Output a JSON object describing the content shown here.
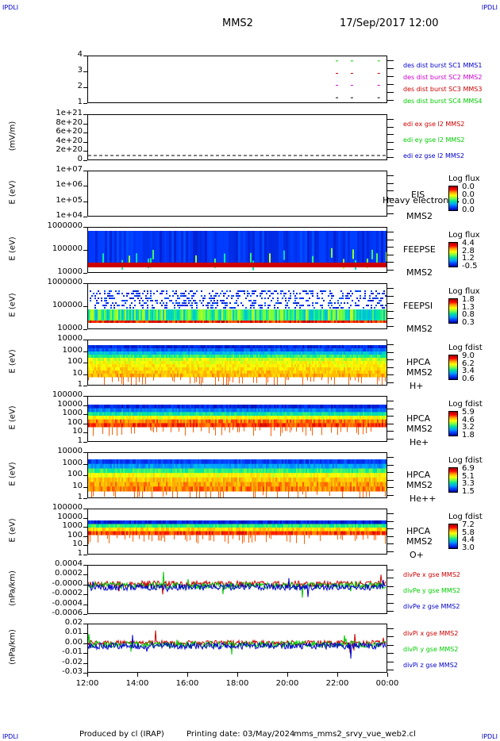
{
  "corners": {
    "tl": "IPDLI",
    "tr": "IPDLI",
    "bl": "IPDLI",
    "br": "IPDLI"
  },
  "header": {
    "title": "MMS2",
    "date": "17/Sep/2017 12:00"
  },
  "footer": {
    "produced": "Produced by cl (IRAP)",
    "printing": "Printing date: 03/May/2024",
    "file": "mms_mms2_srvy_vue_web2.cl"
  },
  "chart_data": [
    {
      "type": "scatter",
      "ylabel": "",
      "yticks": [
        "4",
        "3",
        "2",
        "1"
      ],
      "legend": [
        {
          "name": "des dist burst SC1 MMS1",
          "color": "#0000cc"
        },
        {
          "name": "des dist burst SC2 MMS2",
          "color": "#cc00cc"
        },
        {
          "name": "des dist burst SC3 MMS3",
          "color": "#cc0000"
        },
        {
          "name": "des dist burst SC4 MMS4",
          "color": "#00cc00"
        }
      ]
    },
    {
      "type": "line",
      "ylabel": "(mV/m)",
      "yticks": [
        "1e+21",
        "8e+20",
        "6e+20",
        "4e+20",
        "2e+20",
        "0"
      ],
      "legend": [
        {
          "name": "edi ex gse l2 MMS2",
          "color": "#cc0000"
        },
        {
          "name": "edi ey gse l2 MMS2",
          "color": "#00cc00"
        },
        {
          "name": "edi ez gse l2 MMS2",
          "color": "#0000cc"
        }
      ]
    },
    {
      "type": "heatmap",
      "ylabel": "E (eV)",
      "yticks": [
        "1e+07",
        "1e+06",
        "1e+05",
        "1e+04"
      ],
      "instrument": "EIS",
      "note": "Heavy electron ts",
      "sc": "MMS2",
      "cbar_title": "Log flux",
      "cbar_values": [
        "0.0",
        "0.0",
        "0.0",
        "0.0"
      ]
    },
    {
      "type": "heatmap",
      "ylabel": "E (eV)",
      "yticks": [
        "1000000",
        "100000",
        "10000"
      ],
      "instrument": "FEEPSE",
      "sc": "MMS2",
      "cbar_title": "Log flux",
      "cbar_values": [
        "4.4",
        "2.8",
        "1.2",
        "-0.5"
      ]
    },
    {
      "type": "heatmap",
      "ylabel": "E (eV)",
      "yticks": [
        "1000000",
        "100000",
        "10000"
      ],
      "instrument": "FEEPSI",
      "sc": "MMS2",
      "cbar_title": "Log flux",
      "cbar_values": [
        "1.8",
        "1.3",
        "0.8",
        "0.3"
      ]
    },
    {
      "type": "heatmap",
      "ylabel": "E (eV)",
      "yticks": [
        "10000",
        "1000",
        "100",
        "10",
        "1"
      ],
      "instrument": "HPCA",
      "sc": "MMS2",
      "species": "H+",
      "cbar_title": "Log fdist",
      "cbar_values": [
        "9.0",
        "6.2",
        "3.4",
        "0.6"
      ]
    },
    {
      "type": "heatmap",
      "ylabel": "E (eV)",
      "yticks": [
        "100000",
        "10000",
        "1000",
        "100",
        "10",
        "1"
      ],
      "instrument": "HPCA",
      "sc": "MMS2",
      "species": "He+",
      "cbar_title": "Log fdist",
      "cbar_values": [
        "5.9",
        "4.6",
        "3.2",
        "1.8"
      ]
    },
    {
      "type": "heatmap",
      "ylabel": "E (eV)",
      "yticks": [
        "10000",
        "1000",
        "100",
        "10",
        "1"
      ],
      "instrument": "HPCA",
      "sc": "MMS2",
      "species": "He++",
      "cbar_title": "Log fdist",
      "cbar_values": [
        "6.9",
        "5.1",
        "3.3",
        "1.5"
      ]
    },
    {
      "type": "heatmap",
      "ylabel": "E (eV)",
      "yticks": [
        "100000",
        "10000",
        "1000",
        "100",
        "10",
        "1"
      ],
      "instrument": "HPCA",
      "sc": "MMS2",
      "species": "O+",
      "cbar_title": "Log fdist",
      "cbar_values": [
        "7.2",
        "5.8",
        "4.4",
        "3.0"
      ]
    },
    {
      "type": "line",
      "ylabel": "(nPa/km)",
      "yticks": [
        "0.0004",
        "0.0002",
        "-0.0000",
        "-0.0002",
        "-0.0004",
        "-0.0006"
      ],
      "legend": [
        {
          "name": "divPe x gse MMS2",
          "color": "#cc0000"
        },
        {
          "name": "divPe y gse MMS2",
          "color": "#00cc00"
        },
        {
          "name": "divPe z gse MMS2",
          "color": "#0000cc"
        }
      ]
    },
    {
      "type": "line",
      "ylabel": "(nPa/km)",
      "yticks": [
        "0.02",
        "0.01",
        "0.00",
        "-0.01",
        "-0.02",
        "-0.03"
      ],
      "legend": [
        {
          "name": "divPi x gse MMS2",
          "color": "#cc0000"
        },
        {
          "name": "divPi y gse MMS2",
          "color": "#00cc00"
        },
        {
          "name": "divPi z gse MMS2",
          "color": "#0000cc"
        }
      ]
    }
  ],
  "xaxis": {
    "ticks": [
      "12:00",
      "14:00",
      "16:00",
      "18:00",
      "20:00",
      "22:00",
      "00:00"
    ]
  }
}
